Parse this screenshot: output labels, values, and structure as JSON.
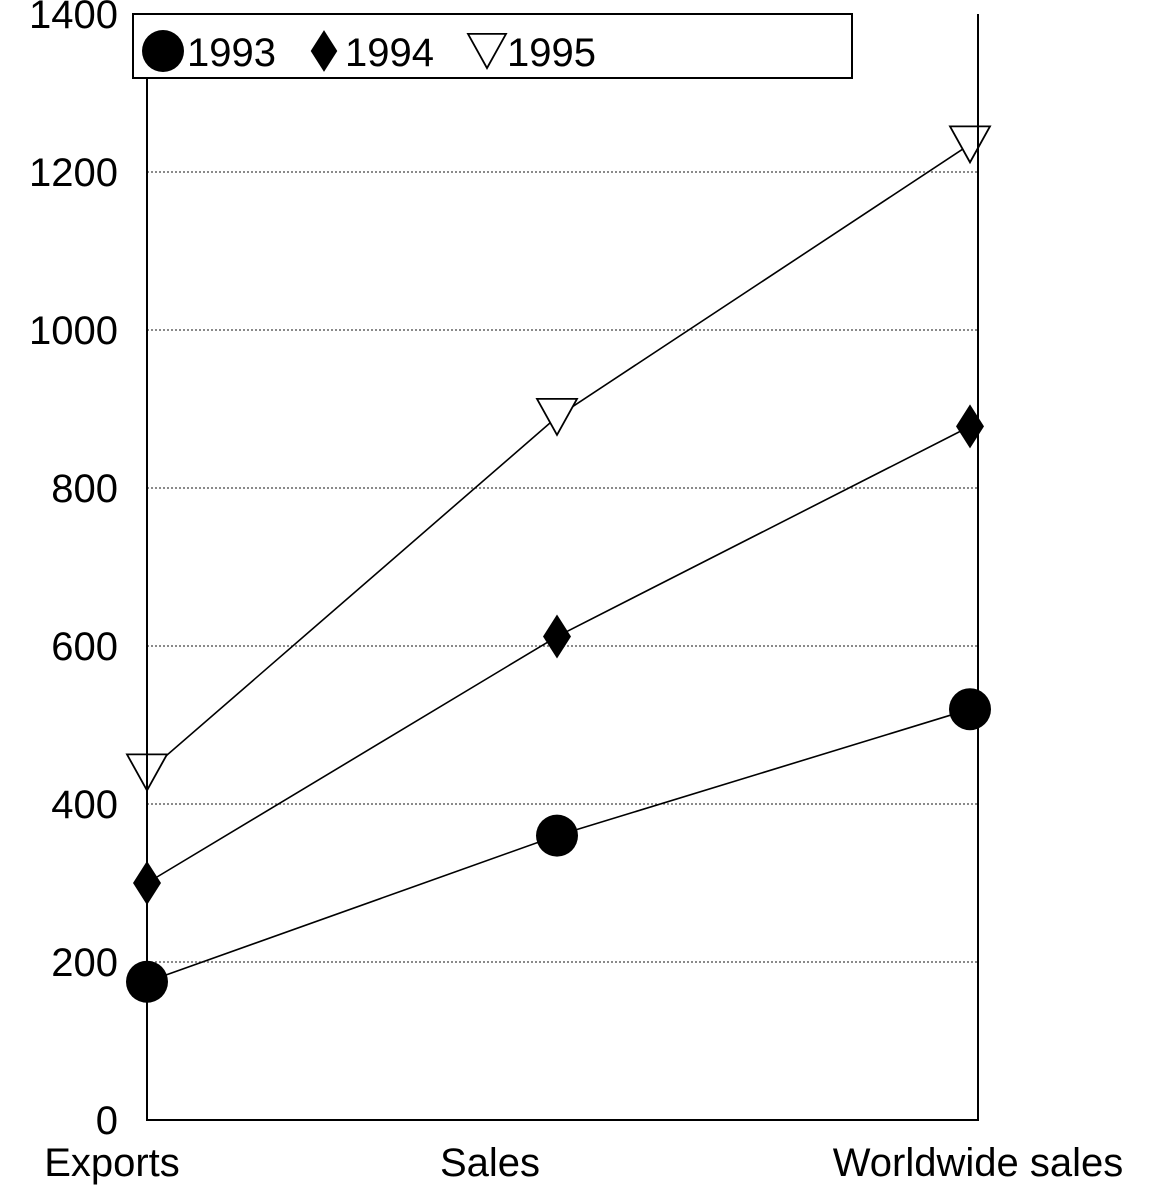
{
  "chart_data": {
    "type": "line",
    "categories": [
      "Exports",
      "Sales",
      "Worldwide sales"
    ],
    "series": [
      {
        "name": "1993",
        "marker": "circle-filled",
        "values": [
          175,
          360,
          520
        ]
      },
      {
        "name": "1994",
        "marker": "diamond-filled",
        "values": [
          300,
          612,
          878
        ]
      },
      {
        "name": "1995",
        "marker": "triangle-down-open",
        "values": [
          440,
          890,
          1235
        ]
      }
    ],
    "yticks": [
      0,
      200,
      400,
      600,
      800,
      1000,
      1200,
      1400
    ],
    "ylim": [
      0,
      1400
    ],
    "grid": "horizontal dotted",
    "legend": "top-left inside"
  }
}
